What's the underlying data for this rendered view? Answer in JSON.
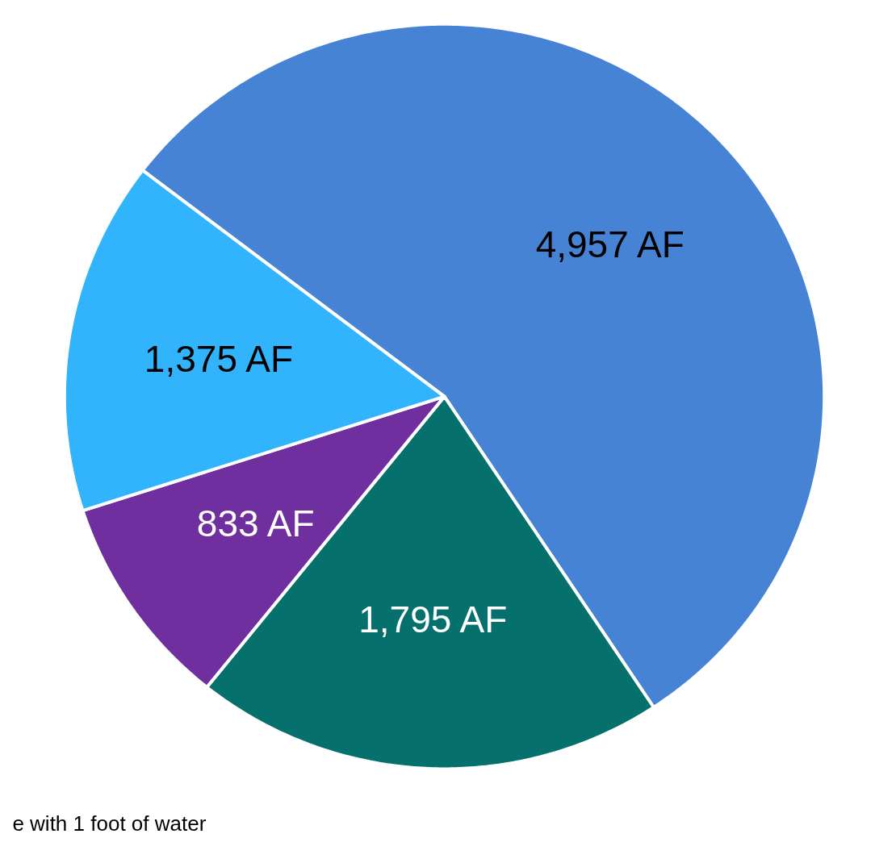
{
  "chart_data": {
    "type": "pie",
    "categories": [
      null,
      null,
      null,
      null
    ],
    "values": [
      4957,
      1795,
      833,
      1375
    ],
    "colors": [
      "#4783d4",
      "#06706c",
      "#6f2f9f",
      "#32b4fd"
    ],
    "value_labels": [
      "4,957 AF",
      "1,795 AF",
      "833 AF",
      "1,375 AF"
    ],
    "annotations": [
      "e with 1 foot of water"
    ]
  }
}
